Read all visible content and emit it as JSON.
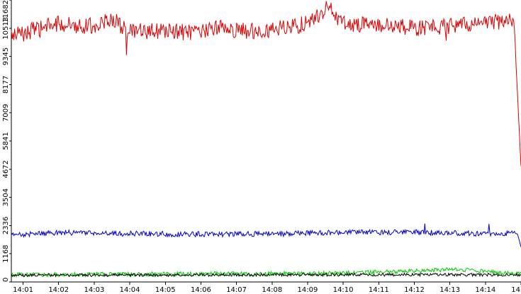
{
  "chart_data": {
    "type": "line",
    "title": "",
    "xlabel": "",
    "ylabel": "",
    "grid": false,
    "legend": "none",
    "x_start_label": "14:00:40",
    "x_end_label": "14:15:00",
    "xlim_minutes": [
      0.67,
      15.0
    ],
    "ylim": [
      0,
      11682
    ],
    "y_ticks": [
      0,
      1168,
      2336,
      3504,
      4672,
      5841,
      7009,
      8177,
      9345,
      10513,
      11682
    ],
    "x_ticks": [
      {
        "label": "14:01",
        "minute": 1
      },
      {
        "label": "14:02",
        "minute": 2
      },
      {
        "label": "14:03",
        "minute": 3
      },
      {
        "label": "14:04",
        "minute": 4
      },
      {
        "label": "14:05",
        "minute": 5
      },
      {
        "label": "14:06",
        "minute": 6
      },
      {
        "label": "14:07",
        "minute": 7
      },
      {
        "label": "14:08",
        "minute": 8
      },
      {
        "label": "14:09",
        "minute": 9
      },
      {
        "label": "14:10",
        "minute": 10
      },
      {
        "label": "14:11",
        "minute": 11
      },
      {
        "label": "14:12",
        "minute": 12
      },
      {
        "label": "14:13",
        "minute": 13
      },
      {
        "label": "14:14",
        "minute": 14
      },
      {
        "label": "14",
        "minute": 15
      }
    ],
    "series": [
      {
        "color": "#dd0000",
        "mean": 10500,
        "noise": 350,
        "values_by_minute": {
          "0.67": 10200,
          "1": 10300,
          "2": 10700,
          "3": 10600,
          "3.5": 10900,
          "4": 10350,
          "5": 10400,
          "6": 10300,
          "6.5": 10600,
          "7": 10400,
          "8": 10450,
          "9": 10700,
          "9.6": 11400,
          "10": 10700,
          "11": 10650,
          "12": 10500,
          "13": 10600,
          "14": 10750,
          "14.8": 10850,
          "15": 4800
        },
        "dips": [
          {
            "minute": 3.9,
            "value": 9400
          },
          {
            "minute": 12.9,
            "value": 10000
          }
        ]
      },
      {
        "color": "#0000cc",
        "mean": 2000,
        "noise": 110,
        "values_by_minute": {
          "0.67": 1950,
          "2": 2050,
          "4": 2000,
          "6": 1980,
          "8": 1990,
          "10": 2050,
          "12": 2060,
          "14": 2000,
          "14.9": 2000,
          "15": 1450
        },
        "spikes": [
          {
            "minute": 12.3,
            "value": 2420
          },
          {
            "minute": 14.1,
            "value": 2400
          }
        ]
      },
      {
        "color": "#00cc00",
        "mean": 340,
        "noise": 90,
        "values_by_minute": {
          "0.67": 300,
          "5": 330,
          "10": 360,
          "13.2": 520,
          "15": 320
        }
      },
      {
        "color": "#000000",
        "mean": 290,
        "noise": 60,
        "values_by_minute": {
          "0.67": 280,
          "5": 290,
          "10": 300,
          "15": 300
        }
      }
    ]
  }
}
